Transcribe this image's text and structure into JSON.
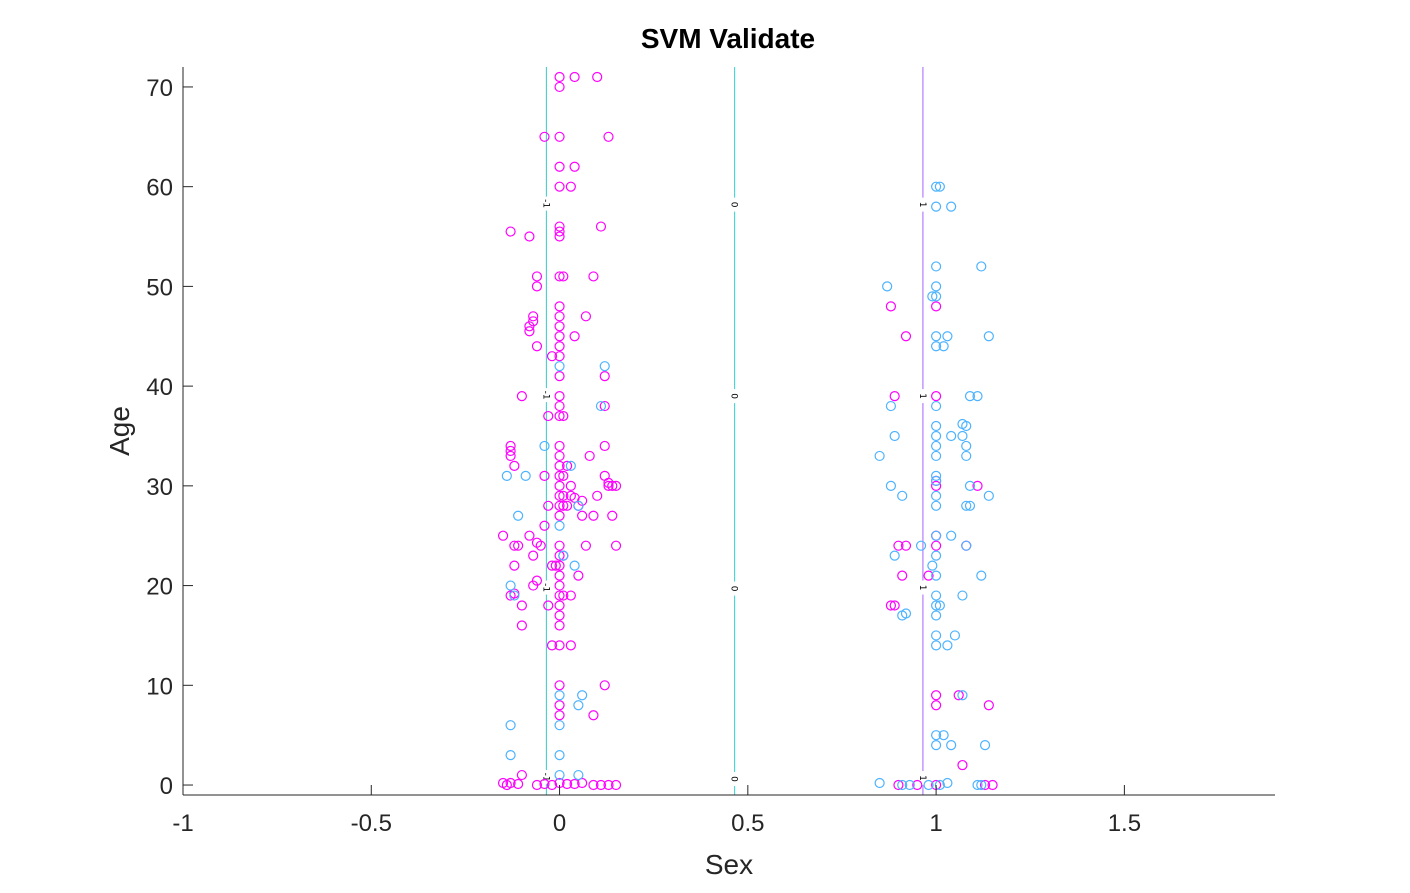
{
  "chart_data": {
    "type": "scatter",
    "title": "SVM Validate",
    "xlabel": "Sex",
    "ylabel": "Age",
    "xlim": [
      -1,
      1.9
    ],
    "ylim": [
      -1,
      72
    ],
    "xticks": [
      -1,
      -0.5,
      0,
      0.5,
      1,
      1.5
    ],
    "xtick_labels": [
      "-1",
      "-0.5",
      "0",
      "0.5",
      "1",
      "1.5"
    ],
    "yticks": [
      0,
      10,
      20,
      30,
      40,
      50,
      60,
      70
    ],
    "ytick_labels": [
      "0",
      "10",
      "20",
      "30",
      "40",
      "50",
      "60",
      "70"
    ],
    "grid": false,
    "legend": "none",
    "colors": {
      "class_magenta": "#ff00ff",
      "class_blue": "#4db3ff",
      "line_cyan": "#33cccc",
      "line_purple": "#a366ff",
      "axis": "#262626"
    },
    "boundaries": [
      {
        "x": -0.035,
        "color": "#33cccc",
        "label": "-1",
        "label_y": [
          0.8,
          19.8,
          39.1,
          58.3
        ]
      },
      {
        "x": 0.465,
        "color": "#33cccc",
        "label": "0",
        "label_y": [
          0.6,
          19.7,
          39.0,
          58.2
        ]
      },
      {
        "x": 0.965,
        "color": "#a366ff",
        "label": "1",
        "label_y": [
          0.7,
          19.8,
          39.0,
          58.2
        ]
      }
    ],
    "series": [
      {
        "color": "#ff00ff",
        "points": [
          [
            0,
            71
          ],
          [
            0.04,
            71
          ],
          [
            0.1,
            71
          ],
          [
            0,
            70
          ],
          [
            -0.04,
            65
          ],
          [
            0,
            65
          ],
          [
            0.13,
            65
          ],
          [
            0,
            62
          ],
          [
            0.04,
            62
          ],
          [
            0,
            60
          ],
          [
            0.03,
            60
          ],
          [
            0.11,
            56
          ],
          [
            0,
            56
          ],
          [
            0,
            55.5
          ],
          [
            -0.13,
            55.5
          ],
          [
            -0.08,
            55
          ],
          [
            0,
            55
          ],
          [
            -0.06,
            51
          ],
          [
            0,
            51
          ],
          [
            0.01,
            51
          ],
          [
            0.09,
            51
          ],
          [
            -0.06,
            50
          ],
          [
            0,
            48
          ],
          [
            -0.07,
            47
          ],
          [
            -0.07,
            46.5
          ],
          [
            0,
            47
          ],
          [
            0.07,
            47
          ],
          [
            -0.08,
            46
          ],
          [
            0,
            46
          ],
          [
            -0.08,
            45.5
          ],
          [
            0,
            45
          ],
          [
            0.04,
            45
          ],
          [
            0,
            44
          ],
          [
            -0.06,
            44
          ],
          [
            -0.02,
            43
          ],
          [
            0,
            43
          ],
          [
            0.12,
            41
          ],
          [
            0,
            41
          ],
          [
            -0.1,
            39
          ],
          [
            0,
            39
          ],
          [
            0,
            38
          ],
          [
            0.12,
            38
          ],
          [
            -0.03,
            37
          ],
          [
            0,
            37
          ],
          [
            0.01,
            37
          ],
          [
            -0.13,
            34
          ],
          [
            -0.13,
            33.5
          ],
          [
            0,
            34
          ],
          [
            0.12,
            34
          ],
          [
            -0.13,
            33
          ],
          [
            0,
            33
          ],
          [
            0.08,
            33
          ],
          [
            -0.12,
            32
          ],
          [
            0,
            32
          ],
          [
            0.02,
            32
          ],
          [
            -0.04,
            31
          ],
          [
            0,
            31
          ],
          [
            0.01,
            31
          ],
          [
            0.12,
            31
          ],
          [
            0,
            30
          ],
          [
            0.03,
            30
          ],
          [
            0.13,
            30
          ],
          [
            0.14,
            30
          ],
          [
            0.15,
            30
          ],
          [
            0.13,
            30.3
          ],
          [
            0,
            29
          ],
          [
            0.01,
            29
          ],
          [
            0.03,
            29
          ],
          [
            0.04,
            28.8
          ],
          [
            0.1,
            29
          ],
          [
            -0.03,
            28
          ],
          [
            0,
            28
          ],
          [
            0.01,
            28
          ],
          [
            0.02,
            28
          ],
          [
            0.06,
            28.5
          ],
          [
            0.05,
            28
          ],
          [
            0.14,
            27
          ],
          [
            0.06,
            27
          ],
          [
            0.09,
            27
          ],
          [
            0,
            27
          ],
          [
            -0.04,
            26
          ],
          [
            -0.15,
            25
          ],
          [
            -0.08,
            25
          ],
          [
            -0.06,
            24.3
          ],
          [
            -0.12,
            24
          ],
          [
            -0.11,
            24
          ],
          [
            -0.05,
            24
          ],
          [
            0.07,
            24
          ],
          [
            0.15,
            24
          ],
          [
            0,
            24
          ],
          [
            -0.07,
            23
          ],
          [
            0,
            23
          ],
          [
            0.01,
            23
          ],
          [
            -0.01,
            22
          ],
          [
            0,
            22
          ],
          [
            -0.02,
            22
          ],
          [
            -0.12,
            22
          ],
          [
            0,
            21
          ],
          [
            0.05,
            21
          ],
          [
            -0.06,
            20.5
          ],
          [
            -0.07,
            20
          ],
          [
            0,
            20
          ],
          [
            0,
            19
          ],
          [
            0.01,
            19
          ],
          [
            0.03,
            19
          ],
          [
            -0.13,
            19
          ],
          [
            -0.12,
            19.2
          ],
          [
            -0.1,
            18
          ],
          [
            -0.03,
            18
          ],
          [
            0,
            18
          ],
          [
            0,
            17
          ],
          [
            -0.1,
            16
          ],
          [
            0,
            16
          ],
          [
            -0.02,
            14
          ],
          [
            0,
            14
          ],
          [
            0.03,
            14
          ],
          [
            0.12,
            10
          ],
          [
            0,
            10
          ],
          [
            0,
            8
          ],
          [
            0.09,
            7
          ],
          [
            0,
            7
          ],
          [
            -0.1,
            1
          ],
          [
            -0.15,
            0.2
          ],
          [
            -0.13,
            0.2
          ],
          [
            -0.11,
            0.1
          ],
          [
            -0.04,
            0.1
          ],
          [
            -0.02,
            0
          ],
          [
            0,
            0.2
          ],
          [
            0.02,
            0.1
          ],
          [
            0.04,
            0.1
          ],
          [
            0.06,
            0.2
          ],
          [
            0.09,
            0
          ],
          [
            0.11,
            0
          ],
          [
            0.15,
            0
          ],
          [
            -0.06,
            0
          ],
          [
            -0.14,
            0
          ],
          [
            0.13,
            0
          ],
          [
            0.88,
            48
          ],
          [
            0.92,
            45
          ],
          [
            1,
            48
          ],
          [
            0.89,
            39
          ],
          [
            1,
            39
          ],
          [
            1.11,
            30
          ],
          [
            1,
            30.5
          ],
          [
            1,
            30
          ],
          [
            0.9,
            24
          ],
          [
            0.92,
            24
          ],
          [
            1,
            25
          ],
          [
            1,
            24
          ],
          [
            1.08,
            24
          ],
          [
            0.88,
            18
          ],
          [
            0.89,
            18
          ],
          [
            0.91,
            21
          ],
          [
            0.98,
            21
          ],
          [
            1,
            9
          ],
          [
            1.06,
            9
          ],
          [
            1.14,
            8
          ],
          [
            1,
            8
          ],
          [
            1.07,
            2
          ],
          [
            0.9,
            0
          ],
          [
            0.95,
            0
          ],
          [
            1,
            0
          ],
          [
            1.13,
            0
          ],
          [
            1.15,
            0
          ]
        ]
      },
      {
        "color": "#4db3ff",
        "points": [
          [
            0.12,
            42
          ],
          [
            0,
            42
          ],
          [
            0.11,
            38
          ],
          [
            -0.04,
            34
          ],
          [
            0.03,
            32
          ],
          [
            -0.09,
            31
          ],
          [
            -0.14,
            31
          ],
          [
            0.05,
            28
          ],
          [
            -0.11,
            27
          ],
          [
            0,
            26
          ],
          [
            0.01,
            23
          ],
          [
            0.04,
            22
          ],
          [
            -0.13,
            20
          ],
          [
            -0.12,
            19
          ],
          [
            0,
            9
          ],
          [
            0.06,
            9
          ],
          [
            0.05,
            8
          ],
          [
            0,
            6
          ],
          [
            -0.13,
            6
          ],
          [
            -0.13,
            3
          ],
          [
            0,
            3
          ],
          [
            0.05,
            1
          ],
          [
            0,
            1
          ],
          [
            1,
            60
          ],
          [
            1.01,
            60
          ],
          [
            1,
            58
          ],
          [
            1.04,
            58
          ],
          [
            1,
            52
          ],
          [
            1.12,
            52
          ],
          [
            0.87,
            50
          ],
          [
            1,
            50
          ],
          [
            0.99,
            49
          ],
          [
            1,
            49
          ],
          [
            1,
            45
          ],
          [
            1.03,
            45
          ],
          [
            1.14,
            45
          ],
          [
            1,
            44
          ],
          [
            1.02,
            44
          ],
          [
            0.88,
            38
          ],
          [
            1,
            38
          ],
          [
            1.09,
            39
          ],
          [
            1.11,
            39
          ],
          [
            1,
            36
          ],
          [
            1.08,
            36
          ],
          [
            1.07,
            36.2
          ],
          [
            0.89,
            35
          ],
          [
            1,
            35
          ],
          [
            1.04,
            35
          ],
          [
            1.07,
            35
          ],
          [
            1,
            34
          ],
          [
            1.08,
            34
          ],
          [
            0.85,
            33
          ],
          [
            1,
            33
          ],
          [
            1.08,
            33
          ],
          [
            1,
            31
          ],
          [
            1,
            30.5
          ],
          [
            0.88,
            30
          ],
          [
            1.09,
            30
          ],
          [
            0.91,
            29
          ],
          [
            1,
            29
          ],
          [
            1.14,
            29
          ],
          [
            1,
            28
          ],
          [
            1.08,
            28
          ],
          [
            1.09,
            28
          ],
          [
            1.04,
            25
          ],
          [
            1,
            25
          ],
          [
            0.96,
            24
          ],
          [
            1.08,
            24
          ],
          [
            0.89,
            23
          ],
          [
            1,
            23
          ],
          [
            0.99,
            22
          ],
          [
            1,
            21
          ],
          [
            1.12,
            21
          ],
          [
            1,
            19
          ],
          [
            1.07,
            19
          ],
          [
            1,
            18
          ],
          [
            1.01,
            18
          ],
          [
            0.91,
            17
          ],
          [
            0.92,
            17.2
          ],
          [
            1,
            17
          ],
          [
            1,
            15
          ],
          [
            1.05,
            15
          ],
          [
            1,
            14
          ],
          [
            1.03,
            14
          ],
          [
            1.07,
            9
          ],
          [
            1,
            5
          ],
          [
            1.02,
            5
          ],
          [
            1,
            4
          ],
          [
            1.04,
            4
          ],
          [
            1.13,
            4
          ],
          [
            0.85,
            0.2
          ],
          [
            0.91,
            0
          ],
          [
            0.93,
            0
          ],
          [
            0.98,
            0
          ],
          [
            1.01,
            0
          ],
          [
            1.03,
            0.2
          ],
          [
            1.11,
            0
          ],
          [
            1.12,
            0
          ]
        ]
      }
    ]
  }
}
